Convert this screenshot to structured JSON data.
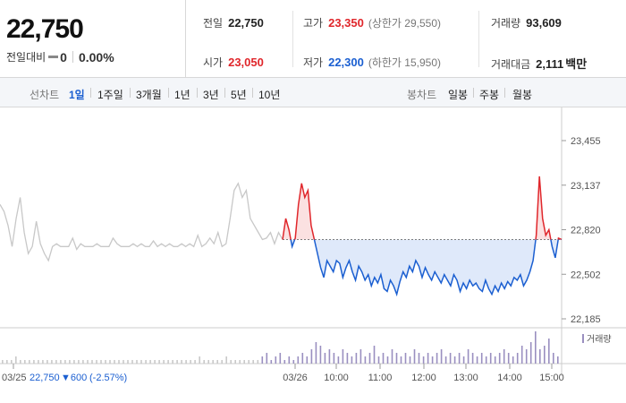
{
  "summary": {
    "price": "22,750",
    "change_label": "전일대비",
    "change_value": "0",
    "change_pct": "0.00%"
  },
  "stats": {
    "prev_close_label": "전일",
    "prev_close": "22,750",
    "high_label": "고가",
    "high": "23,350",
    "upper_limit": "(상한가 29,550)",
    "volume_label": "거래량",
    "volume": "93,609",
    "open_label": "시가",
    "open": "23,050",
    "low_label": "저가",
    "low": "22,300",
    "lower_limit": "(하한가 15,950)",
    "amount_label": "거래대금",
    "amount": "2,111",
    "amount_unit": "백만"
  },
  "toolbar": {
    "line_chart_label": "선차트",
    "periods": [
      "1일",
      "1주일",
      "3개월",
      "1년",
      "3년",
      "5년",
      "10년"
    ],
    "active_period": "1일",
    "candle_chart_label": "봉차트",
    "candles": [
      "일봉",
      "주봉",
      "월봉"
    ]
  },
  "colors": {
    "up": "#e0262b",
    "down": "#1b5fd1",
    "prev_day": "#c8c8c8",
    "volume": "#9a8fc0"
  },
  "chart_data": {
    "type": "line",
    "y_ticks": [
      "23,455",
      "23,137",
      "22,820",
      "22,502",
      "22,185"
    ],
    "ylim": [
      22185,
      23455
    ],
    "reference_price": 22750,
    "volume_legend": "거래량",
    "x_ticks": [
      "03/25",
      "03/26",
      "10:00",
      "11:00",
      "12:00",
      "13:00",
      "14:00",
      "15:00"
    ],
    "prev_day_caption": {
      "date": "03/25",
      "price": "22,750",
      "change": "▼600",
      "pct": "(-2.57%)"
    },
    "prev_day_series": [
      23000,
      22950,
      22850,
      22700,
      22900,
      23050,
      22800,
      22650,
      22700,
      22880,
      22720,
      22650,
      22600,
      22700,
      22720,
      22700,
      22700,
      22700,
      22760,
      22680,
      22720,
      22700,
      22700,
      22700,
      22720,
      22700,
      22700,
      22700,
      22760,
      22720,
      22700,
      22700,
      22700,
      22720,
      22700,
      22720,
      22700,
      22700,
      22740,
      22700,
      22720,
      22700,
      22720,
      22700,
      22700,
      22720,
      22700,
      22720,
      22700,
      22780,
      22700,
      22720,
      22760,
      22720,
      22800,
      22700,
      22720,
      22900,
      23100,
      23150,
      23050,
      23100,
      22900,
      22850,
      22800,
      22750,
      22760,
      22800,
      22720,
      22800,
      22750
    ],
    "today_series": [
      22750,
      22900,
      22820,
      22700,
      22760,
      23000,
      23150,
      23050,
      23100,
      22850,
      22750,
      22650,
      22550,
      22480,
      22600,
      22560,
      22520,
      22600,
      22580,
      22480,
      22550,
      22600,
      22520,
      22460,
      22560,
      22520,
      22460,
      22500,
      22420,
      22480,
      22440,
      22500,
      22400,
      22380,
      22460,
      22420,
      22360,
      22450,
      22520,
      22480,
      22560,
      22520,
      22600,
      22560,
      22480,
      22550,
      22500,
      22460,
      22520,
      22480,
      22440,
      22500,
      22460,
      22420,
      22500,
      22460,
      22380,
      22440,
      22400,
      22460,
      22420,
      22440,
      22400,
      22380,
      22460,
      22400,
      22360,
      22420,
      22380,
      22440,
      22400,
      22450,
      22420,
      22480,
      22460,
      22500,
      22420,
      22460,
      22520,
      22600,
      22780,
      23200,
      22900,
      22780,
      22820,
      22700,
      22620,
      22760,
      22750
    ],
    "volume_series": [
      1,
      1,
      1,
      2,
      1,
      1,
      1,
      1,
      1,
      1,
      1,
      1,
      1,
      1,
      1,
      1,
      1,
      1,
      1,
      1,
      1,
      1,
      1,
      1,
      1,
      1,
      1,
      1,
      1,
      1,
      1,
      1,
      1,
      1,
      1,
      1,
      1,
      1,
      1,
      1,
      1,
      1,
      1,
      1,
      2,
      1,
      1,
      1,
      1,
      1,
      2,
      1,
      1,
      1,
      1,
      1,
      1,
      1,
      2,
      3,
      1,
      2,
      3,
      1,
      2,
      1,
      2,
      3,
      2,
      4,
      6,
      5,
      3,
      4,
      3,
      2,
      4,
      3,
      2,
      3,
      4,
      2,
      3,
      5,
      2,
      3,
      2,
      4,
      3,
      2,
      3,
      2,
      4,
      3,
      2,
      3,
      2,
      3,
      4,
      2,
      3,
      2,
      3,
      2,
      4,
      3,
      2,
      3,
      2,
      3,
      2,
      3,
      4,
      3,
      2,
      3,
      5,
      4,
      6,
      9,
      4,
      5,
      7,
      3,
      2
    ]
  }
}
